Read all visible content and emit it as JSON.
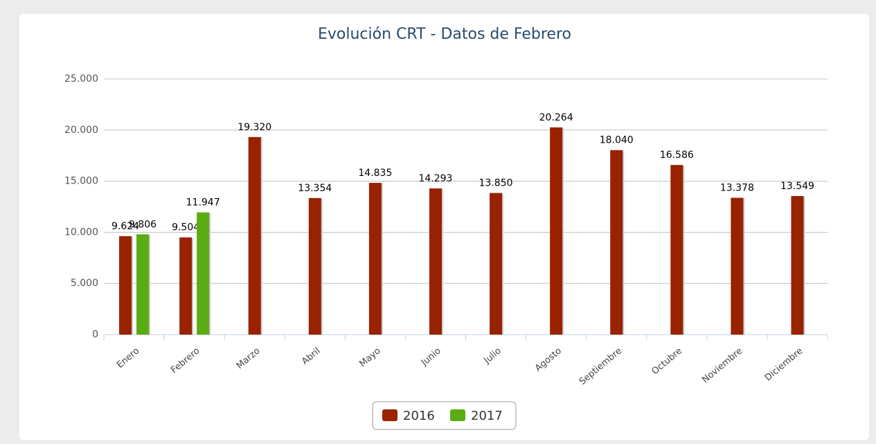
{
  "chart_data": {
    "type": "bar",
    "title": "Evolución CRT - Datos de Febrero",
    "categories": [
      "Enero",
      "Febrero",
      "Marzo",
      "Abril",
      "Mayo",
      "Junio",
      "Julio",
      "Agosto",
      "Septiembre",
      "Octubre",
      "Noviembre",
      "Diciembre"
    ],
    "series": [
      {
        "name": "2016",
        "color": "#992200",
        "values": [
          9624,
          9504,
          19320,
          13354,
          14835,
          14293,
          13850,
          20264,
          18040,
          16586,
          13378,
          13549
        ],
        "value_labels": [
          "9.624",
          "9.504",
          "19.320",
          "13.354",
          "14.835",
          "14.293",
          "13.850",
          "20.264",
          "18.040",
          "16.586",
          "13.378",
          "13.549"
        ]
      },
      {
        "name": "2017",
        "color": "#5aac13",
        "values": [
          9806,
          11947,
          null,
          null,
          null,
          null,
          null,
          null,
          null,
          null,
          null,
          null
        ],
        "value_labels": [
          "9.806",
          "11.947",
          null,
          null,
          null,
          null,
          null,
          null,
          null,
          null,
          null,
          null
        ]
      }
    ],
    "ylim": [
      0,
      25000
    ],
    "yticks": [
      0,
      {
        "value": 5000,
        "label": "5.000"
      },
      {
        "value": 10000,
        "label": "10.000"
      },
      {
        "value": 15000,
        "label": "15.000"
      },
      {
        "value": 20000,
        "label": "20.000"
      },
      {
        "value": 25000,
        "label": "25.000"
      }
    ],
    "grid": true,
    "legend": "bottom"
  }
}
